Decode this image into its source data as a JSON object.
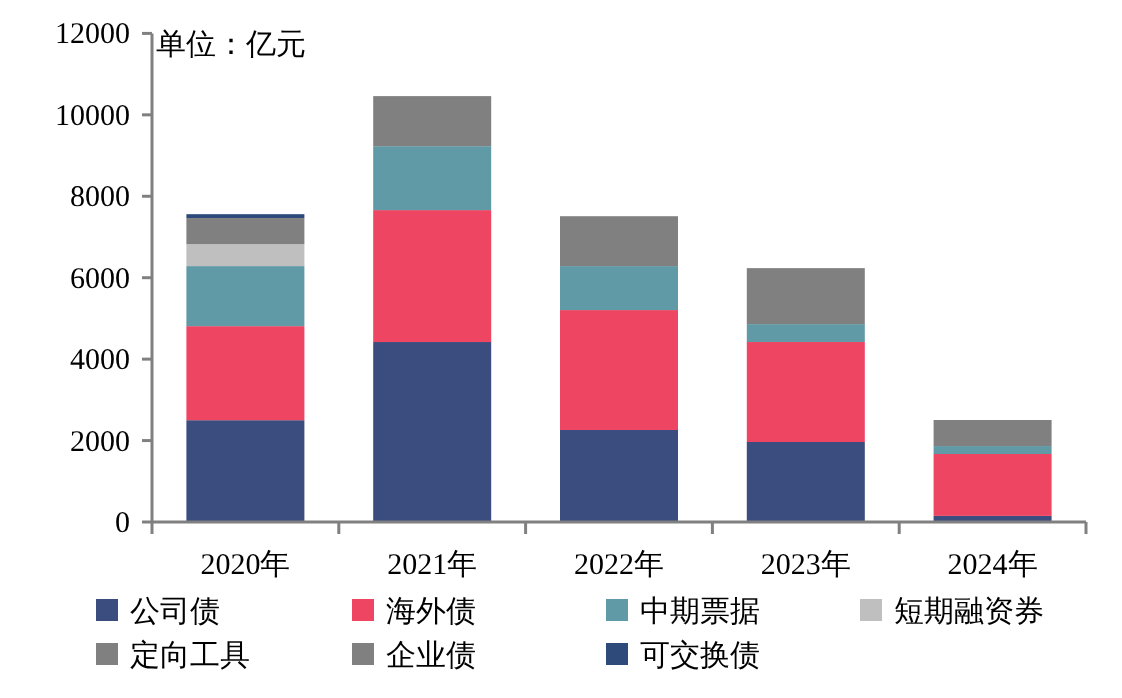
{
  "chart_data": {
    "type": "bar",
    "stacked": true,
    "ylabel": "单位：亿元",
    "categories": [
      "2020年",
      "2021年",
      "2022年",
      "2023年",
      "2024年"
    ],
    "ylim": [
      0,
      12000
    ],
    "yticks": [
      0,
      2000,
      4000,
      6000,
      8000,
      10000,
      12000
    ],
    "legend": "bottom",
    "grid": false,
    "series": [
      {
        "name": "公司债",
        "color": "#3b4d7e",
        "values": [
          2500,
          4420,
          2260,
          1965,
          150
        ]
      },
      {
        "name": "海外债",
        "color": "#ee4563",
        "values": [
          2310,
          3240,
          2945,
          2455,
          1520
        ]
      },
      {
        "name": "中期票据",
        "color": "#5f9aa6",
        "values": [
          1475,
          1570,
          1080,
          440,
          195
        ]
      },
      {
        "name": "短期融资券",
        "color": "#bfbfbf",
        "values": [
          540,
          null,
          null,
          null,
          null
        ]
      },
      {
        "name": "定向工具",
        "color": "#808080",
        "values": [
          null,
          null,
          null,
          null,
          null
        ]
      },
      {
        "name": "企业债",
        "color": "#808080",
        "values": [
          640,
          1230,
          1225,
          1375,
          640
        ]
      },
      {
        "name": "可交换债",
        "color": "#2e4a7a",
        "values": [
          95,
          null,
          null,
          null,
          null
        ]
      }
    ]
  }
}
